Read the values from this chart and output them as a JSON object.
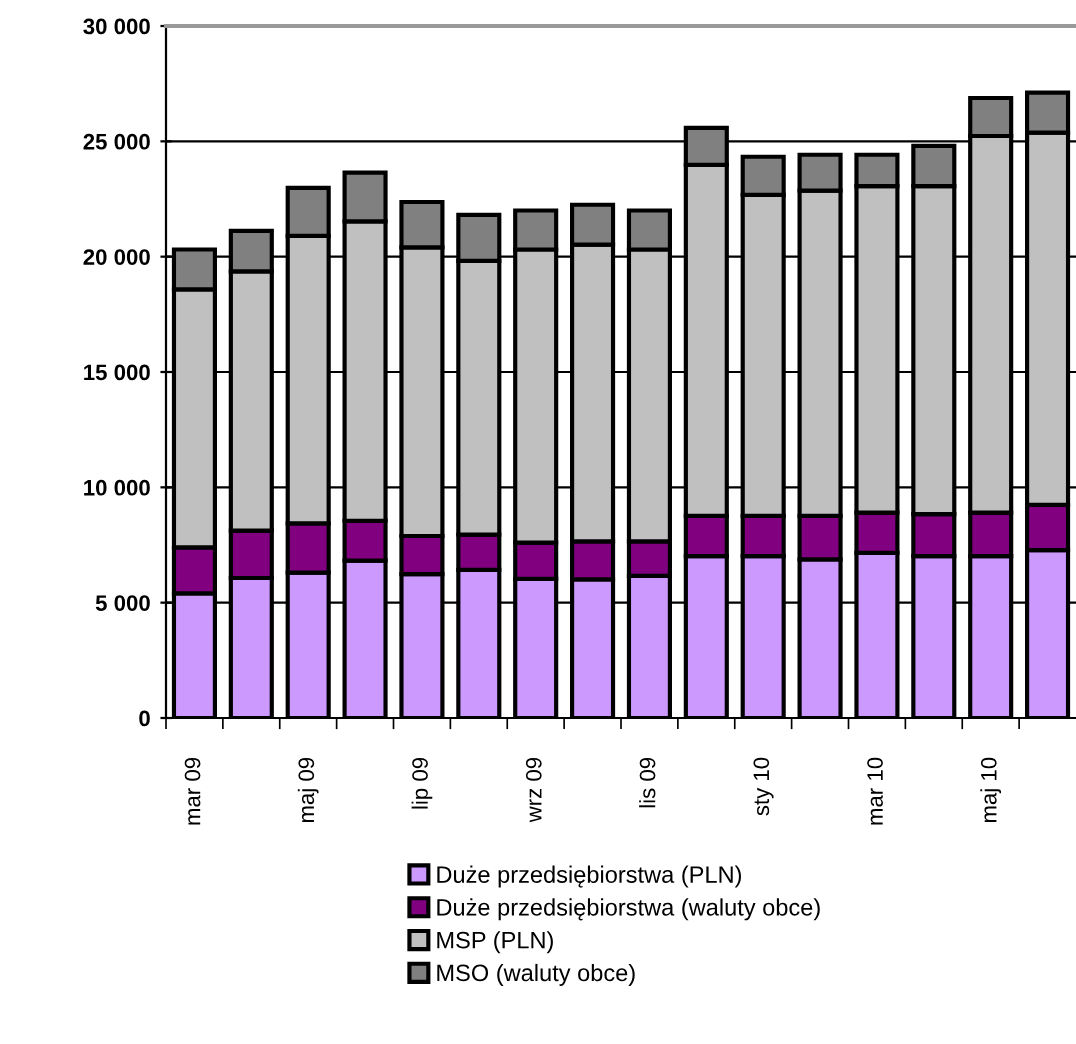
{
  "chart_data": {
    "type": "bar",
    "stacked": true,
    "categories": [
      "mar 09",
      null,
      "maj 09",
      null,
      "lip 09",
      null,
      "wrz 09",
      null,
      "lis 09",
      null,
      "sty 10",
      null,
      "mar 10",
      null,
      "maj 10",
      null
    ],
    "series": [
      {
        "name": "Duże przedsiębiorstwa (PLN)",
        "color": "#cc99ff",
        "values": [
          5400,
          6070,
          6300,
          6820,
          6240,
          6420,
          6030,
          6010,
          6160,
          7020,
          7020,
          6880,
          7160,
          7020,
          7020,
          7280
        ]
      },
      {
        "name": "Duże przedsiębiorstwa (waluty obce)",
        "color": "#800080",
        "values": [
          2000,
          2050,
          2140,
          1730,
          1650,
          1530,
          1570,
          1650,
          1500,
          1740,
          1740,
          1880,
          1740,
          1820,
          1880,
          1960
        ]
      },
      {
        "name": "MSP (PLN)",
        "color": "#c0c0c0",
        "values": [
          11180,
          11240,
          12460,
          12980,
          12510,
          11870,
          12710,
          12860,
          12650,
          15220,
          13920,
          14100,
          14160,
          14220,
          16330,
          16140
        ]
      },
      {
        "name": "MSO (waluty obce)",
        "color": "#808080",
        "values": [
          1730,
          1760,
          2080,
          2110,
          1970,
          1990,
          1690,
          1730,
          1690,
          1600,
          1650,
          1560,
          1360,
          1740,
          1650,
          1730
        ]
      }
    ],
    "ylim": [
      0,
      30000
    ],
    "yticks": [
      {
        "value": 0,
        "label": "0"
      },
      {
        "value": 5000,
        "label": "5 000"
      },
      {
        "value": 10000,
        "label": "10 000"
      },
      {
        "value": 15000,
        "label": "15 000"
      },
      {
        "value": 20000,
        "label": "20 000"
      },
      {
        "value": 25000,
        "label": "25 000"
      },
      {
        "value": 30000,
        "label": "30 000"
      }
    ],
    "grid": "y",
    "legend": "bottom"
  }
}
